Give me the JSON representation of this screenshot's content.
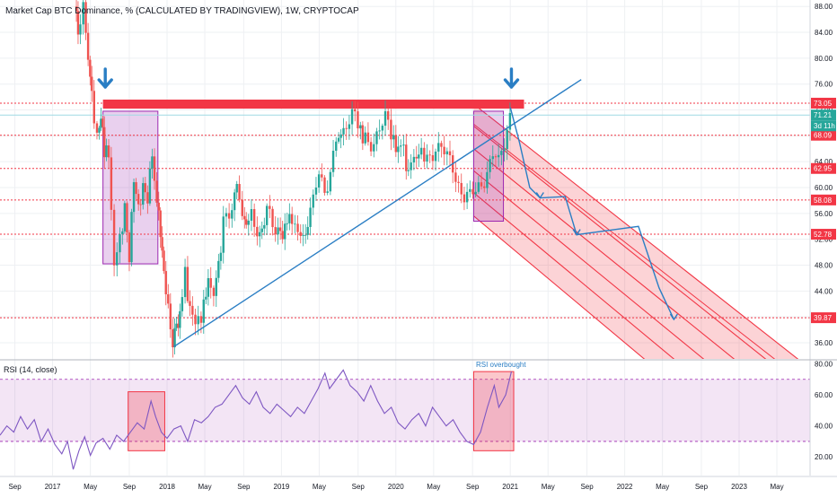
{
  "chart_data": [
    {
      "type": "candlestick",
      "title": "Market Cap BTC Dominance, % (CALCULATED BY TRADINGVIEW), 1W, CRYPTOCAP",
      "y_axis_ticks": [
        "88.00",
        "84.00",
        "80.00",
        "76.00",
        "72.00",
        "68.00",
        "64.00",
        "60.00",
        "56.00",
        "52.00",
        "48.00",
        "44.00",
        "40.00",
        "36.00"
      ],
      "ylim": [
        33.5,
        89
      ],
      "x_axis_ticks": [
        {
          "label": "Sep",
          "t": 2016.67
        },
        {
          "label": "2017",
          "t": 2017.0
        },
        {
          "label": "May",
          "t": 2017.33
        },
        {
          "label": "Sep",
          "t": 2017.67
        },
        {
          "label": "2018",
          "t": 2018.0
        },
        {
          "label": "May",
          "t": 2018.33
        },
        {
          "label": "Sep",
          "t": 2018.67
        },
        {
          "label": "2019",
          "t": 2019.0
        },
        {
          "label": "May",
          "t": 2019.33
        },
        {
          "label": "Sep",
          "t": 2019.67
        },
        {
          "label": "2020",
          "t": 2020.0
        },
        {
          "label": "May",
          "t": 2020.33
        },
        {
          "label": "Sep",
          "t": 2020.67
        },
        {
          "label": "2021",
          "t": 2021.0
        },
        {
          "label": "May",
          "t": 2021.33
        },
        {
          "label": "Sep",
          "t": 2021.67
        },
        {
          "label": "2022",
          "t": 2022.0
        },
        {
          "label": "May",
          "t": 2022.33
        },
        {
          "label": "Sep",
          "t": 2022.67
        },
        {
          "label": "2023",
          "t": 2023.0
        },
        {
          "label": "May",
          "t": 2023.33
        }
      ],
      "xlim": [
        2016.54,
        2023.62
      ],
      "price_path": [
        [
          2017.2,
          88
        ],
        [
          2017.23,
          84
        ],
        [
          2017.28,
          89
        ],
        [
          2017.32,
          78
        ],
        [
          2017.35,
          74
        ],
        [
          2017.4,
          68
        ],
        [
          2017.43,
          72
        ],
        [
          2017.46,
          65
        ],
        [
          2017.5,
          64
        ],
        [
          2017.55,
          50
        ],
        [
          2017.6,
          52
        ],
        [
          2017.64,
          56
        ],
        [
          2017.68,
          48
        ],
        [
          2017.72,
          62
        ],
        [
          2017.76,
          58
        ],
        [
          2017.8,
          60
        ],
        [
          2017.84,
          57
        ],
        [
          2017.88,
          65
        ],
        [
          2017.92,
          58
        ],
        [
          2017.95,
          54
        ],
        [
          2017.98,
          47
        ],
        [
          2018.02,
          40
        ],
        [
          2018.06,
          35
        ],
        [
          2018.09,
          38
        ],
        [
          2018.12,
          39
        ],
        [
          2018.17,
          46
        ],
        [
          2018.21,
          42
        ],
        [
          2018.26,
          38
        ],
        [
          2018.31,
          40
        ],
        [
          2018.37,
          46
        ],
        [
          2018.42,
          43
        ],
        [
          2018.48,
          52
        ],
        [
          2018.53,
          55
        ],
        [
          2018.58,
          57
        ],
        [
          2018.62,
          60
        ],
        [
          2018.67,
          57
        ],
        [
          2018.7,
          53
        ],
        [
          2018.75,
          55
        ],
        [
          2018.8,
          52
        ],
        [
          2018.86,
          56
        ],
        [
          2018.91,
          55
        ],
        [
          2018.96,
          53
        ],
        [
          2019.02,
          54
        ],
        [
          2019.08,
          56
        ],
        [
          2019.13,
          53
        ],
        [
          2019.18,
          52
        ],
        [
          2019.24,
          55
        ],
        [
          2019.29,
          57
        ],
        [
          2019.34,
          62
        ],
        [
          2019.39,
          60
        ],
        [
          2019.44,
          63
        ],
        [
          2019.49,
          67
        ],
        [
          2019.53,
          69
        ],
        [
          2019.58,
          68
        ],
        [
          2019.63,
          71
        ],
        [
          2019.68,
          70
        ],
        [
          2019.72,
          68
        ],
        [
          2019.77,
          67
        ],
        [
          2019.82,
          68
        ],
        [
          2019.87,
          69
        ],
        [
          2019.92,
          70
        ],
        [
          2019.97,
          68
        ],
        [
          2020.03,
          67
        ],
        [
          2020.08,
          65
        ],
        [
          2020.12,
          63
        ],
        [
          2020.17,
          64
        ],
        [
          2020.21,
          66
        ],
        [
          2020.26,
          64
        ],
        [
          2020.31,
          65
        ],
        [
          2020.36,
          67
        ],
        [
          2020.41,
          66
        ],
        [
          2020.46,
          64
        ],
        [
          2020.51,
          63
        ],
        [
          2020.56,
          61
        ],
        [
          2020.61,
          59
        ],
        [
          2020.66,
          58
        ],
        [
          2020.71,
          59
        ],
        [
          2020.76,
          61
        ],
        [
          2020.81,
          63
        ],
        [
          2020.86,
          65
        ],
        [
          2020.91,
          63
        ],
        [
          2020.96,
          67
        ],
        [
          2021.01,
          72
        ]
      ],
      "horizontal_levels": [
        {
          "value": 73.05,
          "label": "73.05"
        },
        {
          "value": 68.09,
          "label": "68.09"
        },
        {
          "value": 62.95,
          "label": "62.95"
        },
        {
          "value": 58.08,
          "label": "58.08"
        },
        {
          "value": 52.78,
          "label": "52.78"
        },
        {
          "value": 39.87,
          "label": "39.87"
        }
      ],
      "current_value_labels": [
        "71.21",
        "3d 11h"
      ],
      "resistance_band": {
        "from_t": 2017.44,
        "to_t": 2021.12,
        "low": 72.2,
        "high": 73.6
      },
      "highlight_boxes": [
        {
          "t0": 2017.44,
          "t1": 2017.92,
          "low": 48.2,
          "high": 71.8
        },
        {
          "t0": 2020.68,
          "t1": 2020.94,
          "low": 54.8,
          "high": 71.8
        }
      ],
      "trendline": [
        [
          2018.06,
          35.4
        ],
        [
          2021.62,
          76.7
        ]
      ],
      "pitchfork": {
        "start_t": 2020.68,
        "end_t": 2023.62,
        "lines": [
          [
            69.8,
            29.2
          ],
          [
            72.9,
            32.0
          ],
          [
            69.5,
            28.0
          ],
          [
            66.0,
            24.0
          ],
          [
            62.6,
            20.0
          ],
          [
            59.2,
            16.0
          ],
          [
            55.6,
            12.0
          ]
        ]
      },
      "projection_path": [
        [
          2021.0,
          72.4
        ],
        [
          2021.08,
          67.0
        ],
        [
          2021.17,
          60.0
        ],
        [
          2021.26,
          58.4
        ],
        [
          2021.48,
          58.6
        ],
        [
          2021.58,
          52.7
        ],
        [
          2022.12,
          54.0
        ],
        [
          2022.3,
          44.5
        ],
        [
          2022.43,
          39.6
        ]
      ],
      "arrow_markers": [
        {
          "t": 2017.46,
          "label": "down-arrow"
        },
        {
          "t": 2021.01,
          "label": "down-arrow"
        }
      ]
    },
    {
      "type": "line",
      "title": "RSI (14, close)",
      "ylim": [
        8,
        82
      ],
      "y_axis_ticks": [
        "80.00",
        "60.00",
        "40.00",
        "20.00"
      ],
      "overbought": 70,
      "oversold": 30,
      "annotation": "RSI overbought",
      "highlight_boxes": [
        {
          "t0": 2017.66,
          "t1": 2017.98,
          "low": 24,
          "high": 62
        },
        {
          "t0": 2020.68,
          "t1": 2021.03,
          "low": 24,
          "high": 75
        }
      ],
      "rsi_path": [
        [
          2016.54,
          34
        ],
        [
          2016.6,
          40
        ],
        [
          2016.66,
          36
        ],
        [
          2016.72,
          46
        ],
        [
          2016.78,
          38
        ],
        [
          2016.84,
          44
        ],
        [
          2016.9,
          30
        ],
        [
          2016.96,
          38
        ],
        [
          2017.02,
          28
        ],
        [
          2017.08,
          22
        ],
        [
          2017.13,
          30
        ],
        [
          2017.18,
          12
        ],
        [
          2017.23,
          24
        ],
        [
          2017.28,
          33
        ],
        [
          2017.33,
          21
        ],
        [
          2017.38,
          29
        ],
        [
          2017.44,
          32
        ],
        [
          2017.5,
          25
        ],
        [
          2017.56,
          34
        ],
        [
          2017.62,
          30
        ],
        [
          2017.68,
          36
        ],
        [
          2017.74,
          42
        ],
        [
          2017.8,
          38
        ],
        [
          2017.86,
          56
        ],
        [
          2017.9,
          46
        ],
        [
          2017.95,
          36
        ],
        [
          2018.0,
          32
        ],
        [
          2018.06,
          38
        ],
        [
          2018.12,
          40
        ],
        [
          2018.18,
          30
        ],
        [
          2018.24,
          44
        ],
        [
          2018.3,
          42
        ],
        [
          2018.36,
          46
        ],
        [
          2018.42,
          52
        ],
        [
          2018.48,
          54
        ],
        [
          2018.54,
          60
        ],
        [
          2018.6,
          66
        ],
        [
          2018.66,
          58
        ],
        [
          2018.72,
          54
        ],
        [
          2018.78,
          62
        ],
        [
          2018.84,
          52
        ],
        [
          2018.9,
          48
        ],
        [
          2018.96,
          54
        ],
        [
          2019.02,
          50
        ],
        [
          2019.08,
          46
        ],
        [
          2019.14,
          52
        ],
        [
          2019.2,
          48
        ],
        [
          2019.26,
          56
        ],
        [
          2019.32,
          64
        ],
        [
          2019.38,
          74
        ],
        [
          2019.42,
          64
        ],
        [
          2019.48,
          70
        ],
        [
          2019.54,
          76
        ],
        [
          2019.6,
          66
        ],
        [
          2019.66,
          62
        ],
        [
          2019.72,
          56
        ],
        [
          2019.78,
          66
        ],
        [
          2019.84,
          56
        ],
        [
          2019.9,
          48
        ],
        [
          2019.96,
          52
        ],
        [
          2020.02,
          42
        ],
        [
          2020.08,
          38
        ],
        [
          2020.14,
          44
        ],
        [
          2020.2,
          48
        ],
        [
          2020.26,
          40
        ],
        [
          2020.32,
          52
        ],
        [
          2020.38,
          46
        ],
        [
          2020.44,
          40
        ],
        [
          2020.5,
          44
        ],
        [
          2020.56,
          36
        ],
        [
          2020.62,
          30
        ],
        [
          2020.68,
          28
        ],
        [
          2020.74,
          36
        ],
        [
          2020.8,
          52
        ],
        [
          2020.86,
          66
        ],
        [
          2020.9,
          52
        ],
        [
          2020.96,
          60
        ],
        [
          2021.01,
          75
        ]
      ]
    }
  ]
}
